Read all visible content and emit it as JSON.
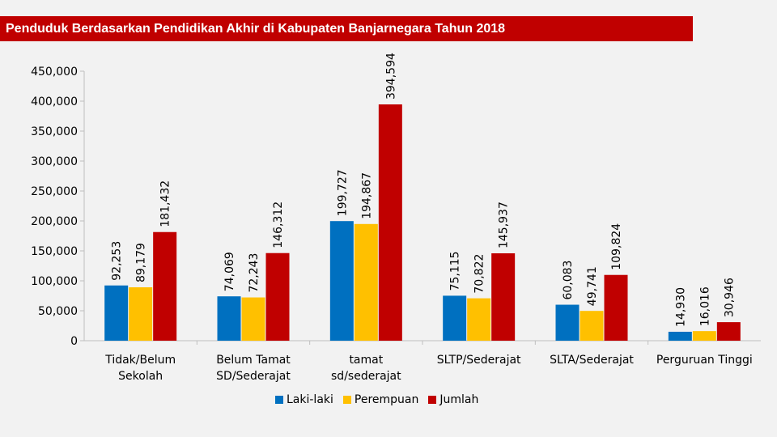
{
  "title": "Penduduk Berdasarkan Pendidikan Akhir di Kabupaten Banjarnegara Tahun 2018",
  "colors": {
    "background": "#f2f2f2",
    "title_bar": "#c00000",
    "laki_laki": "#0070c0",
    "perempuan": "#ffc000",
    "jumlah": "#c00000",
    "axis": "#bfbfbf"
  },
  "legend": {
    "items": [
      {
        "label": "Laki-laki",
        "color": "#0070c0"
      },
      {
        "label": "Perempuan",
        "color": "#ffc000"
      },
      {
        "label": "Jumlah",
        "color": "#c00000"
      }
    ]
  },
  "chart_data": {
    "type": "bar",
    "title": "Penduduk Berdasarkan Pendidikan Akhir di Kabupaten Banjarnegara Tahun 2018",
    "xlabel": "",
    "ylabel": "",
    "ylim": [
      0,
      450000
    ],
    "yticks": [
      0,
      50000,
      100000,
      150000,
      200000,
      250000,
      300000,
      350000,
      400000,
      450000
    ],
    "ytick_labels": [
      "0",
      "50,000",
      "100,000",
      "150,000",
      "200,000",
      "250,000",
      "300,000",
      "350,000",
      "400,000",
      "450,000"
    ],
    "grid": false,
    "legend_position": "bottom",
    "categories": [
      [
        "Tidak/Belum",
        "Sekolah"
      ],
      [
        "Belum Tamat",
        "SD/Sederajat"
      ],
      [
        "tamat",
        "sd/sederajat"
      ],
      [
        "SLTP/Sederajat"
      ],
      [
        "SLTA/Sederajat"
      ],
      [
        "Perguruan Tinggi"
      ]
    ],
    "series": [
      {
        "name": "Laki-laki",
        "color": "#0070c0",
        "values": [
          92253,
          74069,
          199727,
          75115,
          60083,
          14930
        ],
        "labels": [
          "92,253",
          "74,069",
          "199,727",
          "75,115",
          "60,083",
          "14,930"
        ]
      },
      {
        "name": "Perempuan",
        "color": "#ffc000",
        "values": [
          89179,
          72243,
          194867,
          70822,
          49741,
          16016
        ],
        "labels": [
          "89,179",
          "72,243",
          "194,867",
          "70,822",
          "49,741",
          "16,016"
        ]
      },
      {
        "name": "Jumlah",
        "color": "#c00000",
        "values": [
          181432,
          146312,
          394594,
          145937,
          109824,
          30946
        ],
        "labels": [
          "181,432",
          "146,312",
          "394,594",
          "145,937",
          "109,824",
          "30,946"
        ]
      }
    ]
  }
}
